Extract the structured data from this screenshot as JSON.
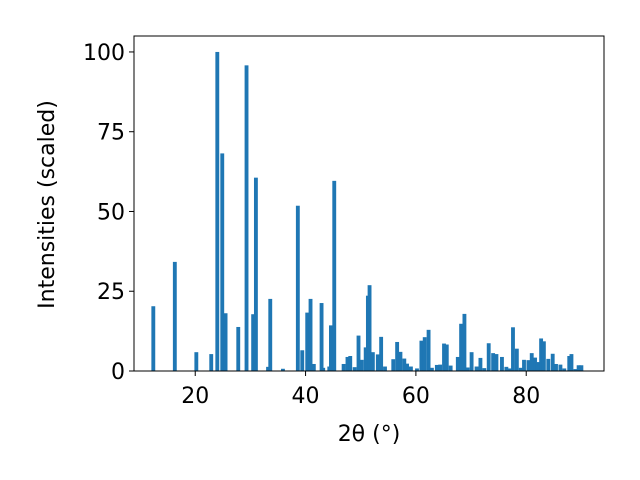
{
  "chart_data": {
    "type": "bar",
    "title": "",
    "xlabel": "2θ (°)",
    "ylabel": "Intensities (scaled)",
    "xlim": [
      8.9,
      94.1
    ],
    "ylim": [
      0,
      105
    ],
    "xticks": [
      20,
      40,
      60,
      80
    ],
    "yticks": [
      0,
      25,
      50,
      75,
      100
    ],
    "grid": false,
    "bar_color": "#1f77b4",
    "bar_width": 0.7,
    "series": [
      {
        "x": [
          12.4,
          16.3,
          20.2,
          22.9,
          24.0,
          24.9,
          25.5,
          27.8,
          29.3,
          30.5,
          31.0,
          33.2,
          33.6,
          35.9,
          38.6,
          39.4,
          40.3,
          40.9,
          41.5,
          42.9,
          43.2,
          44.3,
          44.6,
          45.2,
          46.9,
          47.6,
          48.1,
          48.9,
          49.6,
          50.2,
          50.9,
          51.3,
          51.6,
          52.2,
          53.1,
          53.7,
          54.4,
          55.9,
          56.6,
          57.2,
          57.9,
          58.4,
          59.1,
          60.2,
          61.0,
          61.6,
          62.3,
          62.9,
          63.8,
          64.4,
          65.1,
          65.6,
          66.3,
          67.6,
          68.2,
          68.8,
          69.4,
          70.1,
          71.0,
          71.7,
          72.4,
          73.2,
          74.0,
          74.6,
          75.6,
          76.4,
          77.0,
          77.6,
          78.3,
          79.0,
          79.6,
          80.4,
          81.0,
          81.6,
          82.1,
          82.7,
          83.2,
          84.0,
          84.8,
          85.4,
          86.2,
          86.9,
          87.8,
          88.2,
          88.9,
          89.5,
          90.0
        ],
        "values": [
          20.3,
          34.2,
          5.9,
          5.3,
          100,
          68.2,
          18.1,
          13.8,
          95.8,
          17.8,
          60.6,
          1.3,
          22.6,
          0.7,
          51.8,
          6.5,
          18.3,
          22.6,
          2.2,
          21.3,
          1.0,
          1.4,
          14.3,
          59.6,
          2.2,
          4.4,
          4.7,
          1.2,
          11.1,
          3.5,
          7.4,
          23.6,
          26.9,
          5.9,
          5.2,
          10.7,
          1.4,
          3.7,
          9.1,
          6.0,
          3.9,
          2.3,
          1.4,
          0.8,
          9.5,
          10.6,
          12.9,
          1.0,
          1.9,
          2.0,
          8.6,
          8.3,
          1.7,
          4.4,
          14.8,
          17.9,
          1.1,
          5.9,
          1.4,
          4.1,
          0.9,
          8.7,
          5.6,
          5.3,
          4.4,
          1.3,
          0.8,
          13.7,
          7.0,
          1.0,
          3.5,
          3.4,
          5.6,
          4.2,
          2.8,
          10.2,
          9.3,
          3.8,
          5.4,
          2.2,
          2.0,
          0.8,
          4.7,
          5.3,
          0.6,
          1.8,
          1.8
        ]
      }
    ]
  }
}
